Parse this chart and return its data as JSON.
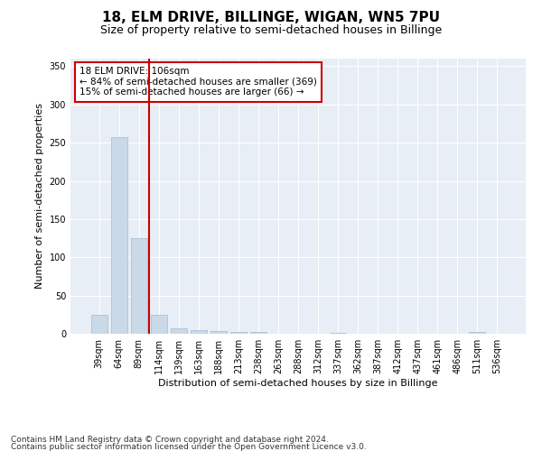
{
  "title_line1": "18, ELM DRIVE, BILLINGE, WIGAN, WN5 7PU",
  "title_line2": "Size of property relative to semi-detached houses in Billinge",
  "xlabel": "Distribution of semi-detached houses by size in Billinge",
  "ylabel": "Number of semi-detached properties",
  "categories": [
    "39sqm",
    "64sqm",
    "89sqm",
    "114sqm",
    "139sqm",
    "163sqm",
    "188sqm",
    "213sqm",
    "238sqm",
    "263sqm",
    "288sqm",
    "312sqm",
    "337sqm",
    "362sqm",
    "387sqm",
    "412sqm",
    "437sqm",
    "461sqm",
    "486sqm",
    "511sqm",
    "536sqm"
  ],
  "values": [
    25,
    257,
    125,
    25,
    7,
    5,
    3,
    2,
    2,
    0,
    0,
    0,
    1,
    0,
    0,
    0,
    0,
    0,
    0,
    2,
    0
  ],
  "bar_color": "#c9d9e8",
  "bar_edge_color": "#a0bcd0",
  "vline_x": 2.5,
  "vline_color": "#cc0000",
  "annotation_text": "18 ELM DRIVE: 106sqm\n← 84% of semi-detached houses are smaller (369)\n15% of semi-detached houses are larger (66) →",
  "annotation_box_color": "#ffffff",
  "annotation_box_edge": "#cc0000",
  "ylim": [
    0,
    360
  ],
  "yticks": [
    0,
    50,
    100,
    150,
    200,
    250,
    300,
    350
  ],
  "plot_bg_color": "#e8eef5",
  "footer_line1": "Contains HM Land Registry data © Crown copyright and database right 2024.",
  "footer_line2": "Contains public sector information licensed under the Open Government Licence v3.0.",
  "title_fontsize": 11,
  "subtitle_fontsize": 9,
  "annotation_fontsize": 7.5,
  "tick_fontsize": 7,
  "ylabel_fontsize": 8,
  "xlabel_fontsize": 8,
  "footer_fontsize": 6.5
}
